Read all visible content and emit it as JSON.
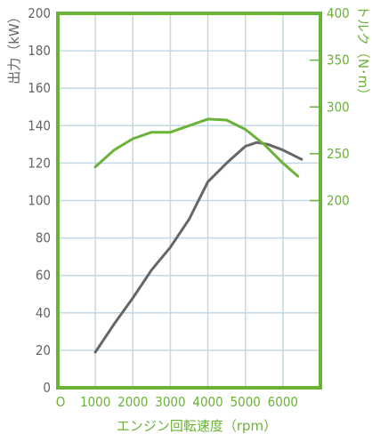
{
  "chart_data": {
    "type": "line",
    "xlabel": "エンジン回転速度（rpm）",
    "ylabel_left": "出力（kW）",
    "ylabel_right": "トルク（N･m）",
    "x_ticks": [
      "O",
      "1000",
      "2000",
      "3000",
      "4000",
      "5000",
      "6000"
    ],
    "x_tick_values": [
      0,
      1000,
      2000,
      3000,
      4000,
      5000,
      6000
    ],
    "xlim": [
      0,
      7000
    ],
    "y_left_ticks": [
      "0",
      "20",
      "40",
      "60",
      "80",
      "100",
      "120",
      "140",
      "160",
      "180",
      "200"
    ],
    "ylim_left": [
      0,
      200
    ],
    "y_right_ticks": [
      "200",
      "250",
      "300",
      "350",
      "400"
    ],
    "y_right_tick_values": [
      200,
      250,
      300,
      350,
      400
    ],
    "ylim_right": [
      0,
      400
    ],
    "grid": true,
    "series": [
      {
        "axis": "left",
        "color": "#666666",
        "x": [
          1000,
          1500,
          2000,
          2500,
          3000,
          3500,
          4000,
          4500,
          5000,
          5300,
          5600,
          6000,
          6500
        ],
        "values": [
          19,
          34,
          48,
          63,
          75,
          90,
          110,
          120,
          129,
          131,
          130,
          127,
          122
        ]
      },
      {
        "axis": "right",
        "color": "#6bb238",
        "x": [
          1000,
          1500,
          2000,
          2500,
          3000,
          3500,
          4000,
          4500,
          5000,
          5500,
          6000,
          6400
        ],
        "values": [
          236,
          254,
          266,
          273,
          273,
          280,
          287,
          286,
          276,
          260,
          240,
          226
        ]
      }
    ]
  },
  "colors": {
    "frame": "#6bb238",
    "grid": "#c3d9e6",
    "output_line": "#666666",
    "torque_line": "#6bb238",
    "left_text": "#666666",
    "right_text": "#6bb238"
  }
}
